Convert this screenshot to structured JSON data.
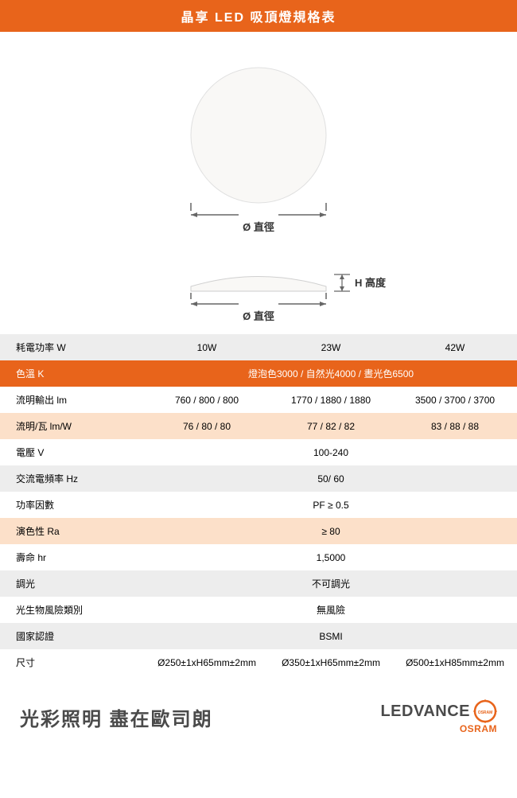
{
  "title": "晶享 LED 吸頂燈規格表",
  "diagram": {
    "circle_label": "Ø 直徑",
    "height_label": "H 高度",
    "side_diameter_label": "Ø 直徑",
    "circle_fill": "#f9f8f6",
    "circle_stroke": "#e0e0e0",
    "line_color": "#666666"
  },
  "columns": {
    "col1_width_pct": 28,
    "col_rest_pct": 24
  },
  "rows": [
    {
      "style": "gray",
      "label": "耗電功率 W",
      "cells": [
        "10W",
        "23W",
        "42W"
      ]
    },
    {
      "style": "orange",
      "label": "色溫 K",
      "merged": "燈泡色3000 / 自然光4000 / 晝光色6500"
    },
    {
      "style": "white",
      "label": "流明輸出 lm",
      "cells": [
        "760 / 800 / 800",
        "1770 / 1880 / 1880",
        "3500 / 3700 / 3700"
      ]
    },
    {
      "style": "peach",
      "label": "流明/瓦 lm/W",
      "cells": [
        "76 / 80 / 80",
        "77 / 82 / 82",
        "83 / 88 / 88"
      ]
    },
    {
      "style": "white",
      "label": "電壓 V",
      "merged": "100-240"
    },
    {
      "style": "gray",
      "label": "交流電頻率 Hz",
      "merged": "50/ 60"
    },
    {
      "style": "white",
      "label": "功率因數",
      "merged": "PF ≥ 0.5"
    },
    {
      "style": "peach",
      "label": "演色性 Ra",
      "merged": "≥ 80"
    },
    {
      "style": "white",
      "label": "壽命 hr",
      "merged": "1,5000"
    },
    {
      "style": "gray",
      "label": "調光",
      "merged": "不可調光"
    },
    {
      "style": "white",
      "label": "光生物風險類別",
      "merged": "無風險"
    },
    {
      "style": "gray",
      "label": "國家認證",
      "merged": "BSMI"
    },
    {
      "style": "white",
      "label": "尺寸",
      "cells": [
        "Ø250±1xH65mm±2mm",
        "Ø350±1xH65mm±2mm",
        "Ø500±1xH85mm±2mm"
      ]
    }
  ],
  "footer": {
    "slogan": "光彩照明 盡在歐司朗",
    "brand_top": "LEDVANCE",
    "brand_bottom": "OSRAM",
    "logo_label": "OSRAM",
    "logo_color": "#e8641b"
  }
}
